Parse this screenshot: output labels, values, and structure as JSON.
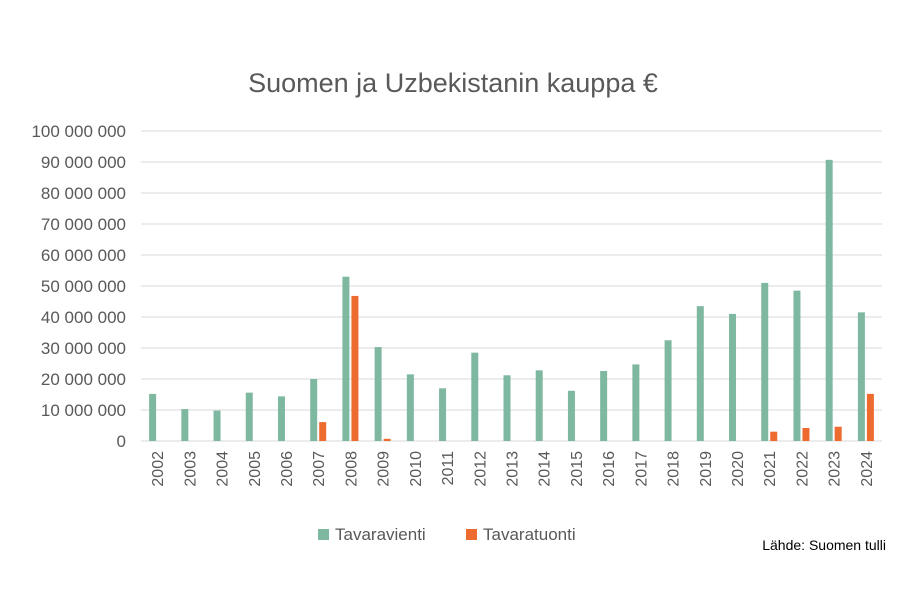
{
  "chart_data": {
    "type": "bar",
    "title": "Suomen ja Uzbekistanin kauppa €",
    "categories": [
      "2002",
      "2003",
      "2004",
      "2005",
      "2006",
      "2007",
      "2008",
      "2009",
      "2010",
      "2011",
      "2012",
      "2013",
      "2014",
      "2015",
      "2016",
      "2017",
      "2018",
      "2019",
      "2020",
      "2021",
      "2022",
      "2023",
      "2024"
    ],
    "series": [
      {
        "name": "Tavaravienti",
        "color": "#7fb8a0",
        "values": [
          15200000,
          10300000,
          9800000,
          15600000,
          14400000,
          20000000,
          53000000,
          30300000,
          21500000,
          17000000,
          28500000,
          21200000,
          22800000,
          16200000,
          22600000,
          24700000,
          32500000,
          43500000,
          41000000,
          51000000,
          48500000,
          90700000,
          41500000
        ]
      },
      {
        "name": "Tavaratuonti",
        "color": "#ed6b2f",
        "values": [
          0,
          0,
          0,
          0,
          0,
          6100000,
          46800000,
          700000,
          0,
          0,
          0,
          0,
          0,
          0,
          0,
          0,
          0,
          0,
          0,
          3000000,
          4200000,
          4600000,
          15200000
        ]
      }
    ],
    "yticks": [
      "0",
      "10 000 000",
      "20 000 000",
      "30 000 000",
      "40 000 000",
      "50 000 000",
      "60 000 000",
      "70 000 000",
      "80 000 000",
      "90 000 000",
      "100 000 000"
    ],
    "ylim": [
      0,
      100000000
    ],
    "grid": true,
    "legend_position": "bottom"
  },
  "source_note": "Lähde: Suomen tulli"
}
